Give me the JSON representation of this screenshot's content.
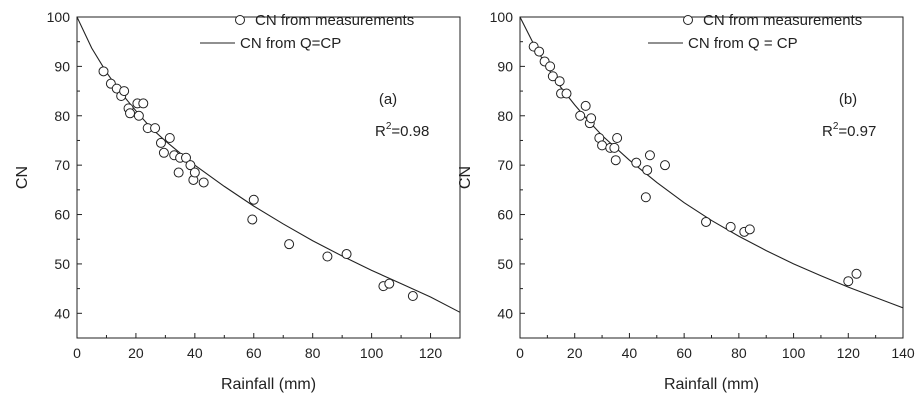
{
  "chart_data": [
    {
      "type": "scatter",
      "panel_label": "(a)",
      "r2_base": "R",
      "r2_sup": "2",
      "r2_value": "=0.98",
      "xlabel": "Rainfall (mm)",
      "ylabel": "CN",
      "xlim": [
        0,
        130
      ],
      "ylim": [
        35,
        100
      ],
      "xticks": [
        0,
        20,
        40,
        60,
        80,
        100,
        120
      ],
      "yticks": [
        40,
        50,
        60,
        70,
        80,
        90,
        100
      ],
      "legend": [
        "CN from measurements",
        "CN from Q=CP"
      ],
      "legend_position": "top-right",
      "grid": false,
      "series": [
        {
          "name": "CN from measurements",
          "kind": "markers",
          "x": [
            9,
            11.5,
            13.5,
            15,
            16,
            17.5,
            18,
            20.5,
            21,
            22.5,
            24,
            26.5,
            28.5,
            29.5,
            31.5,
            33,
            34.5,
            35,
            37,
            38.5,
            39.5,
            40,
            43,
            59.5,
            60,
            72,
            85,
            91.5,
            104,
            106,
            114
          ],
          "y": [
            89,
            86.5,
            85.5,
            84,
            85,
            81.5,
            80.5,
            82.5,
            80,
            82.5,
            77.5,
            77.5,
            74.5,
            72.5,
            75.5,
            72,
            68.5,
            71.5,
            71.5,
            70,
            67,
            68.5,
            66.5,
            59,
            63,
            54,
            51.5,
            52,
            45.5,
            46,
            43.5
          ]
        },
        {
          "name": "CN from Q=CP",
          "kind": "curve",
          "x": [
            0,
            5,
            10,
            15,
            20,
            25,
            30,
            40,
            50,
            60,
            70,
            80,
            90,
            100,
            110,
            120,
            130
          ],
          "y": [
            100,
            93.7,
            88.8,
            84.6,
            81,
            77.6,
            74.9,
            70,
            65.7,
            61.7,
            58.1,
            54.7,
            51.6,
            48.7,
            46,
            43.3,
            40.2
          ]
        }
      ]
    },
    {
      "type": "scatter",
      "panel_label": "(b)",
      "r2_base": "R",
      "r2_sup": "2",
      "r2_value": "=0.97",
      "xlabel": "Rainfall (mm)",
      "ylabel": "CN",
      "xlim": [
        0,
        140
      ],
      "ylim": [
        35,
        100
      ],
      "xticks": [
        0,
        20,
        40,
        60,
        80,
        100,
        120,
        140
      ],
      "yticks": [
        40,
        50,
        60,
        70,
        80,
        90,
        100
      ],
      "legend": [
        "CN from measurements",
        "CN from Q = CP"
      ],
      "legend_position": "top-right",
      "grid": false,
      "series": [
        {
          "name": "CN from measurements",
          "kind": "markers",
          "x": [
            5,
            7,
            9,
            11,
            12,
            14.5,
            15,
            17,
            22,
            24,
            25.5,
            26,
            29,
            30,
            33,
            34.5,
            35,
            35.5,
            42.5,
            46,
            46.5,
            47.5,
            53,
            68,
            77,
            82,
            84,
            120,
            123
          ],
          "y": [
            94,
            93,
            91,
            90,
            88,
            87,
            84.5,
            84.5,
            80,
            82,
            78.5,
            79.5,
            75.5,
            74,
            73.5,
            73.5,
            71,
            75.5,
            70.5,
            63.5,
            69,
            72,
            70,
            58.5,
            57.5,
            56.5,
            57,
            46.5,
            48
          ]
        },
        {
          "name": "CN from Q = CP",
          "kind": "curve",
          "x": [
            0,
            5,
            10,
            15,
            20,
            25,
            30,
            40,
            50,
            60,
            70,
            80,
            90,
            100,
            110,
            120,
            130,
            140
          ],
          "y": [
            100,
            94.5,
            89.8,
            85.7,
            82.2,
            79,
            76,
            71,
            66.5,
            62.4,
            58.8,
            55.6,
            52.7,
            50,
            47.6,
            45.3,
            43.2,
            41.1
          ]
        }
      ]
    }
  ]
}
